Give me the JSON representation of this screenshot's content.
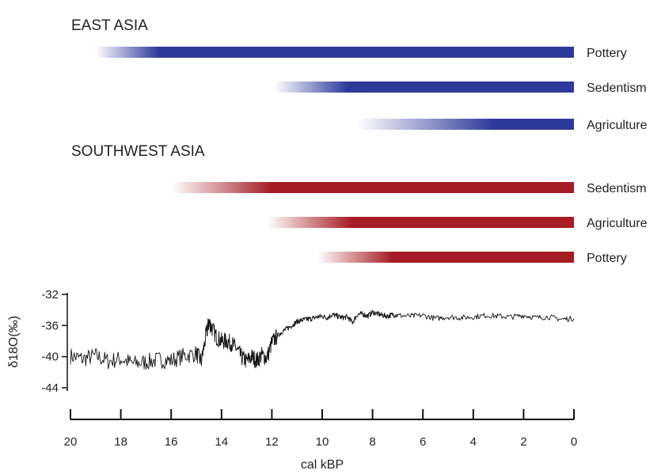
{
  "chart_data": [
    {
      "type": "timeline",
      "xlabel": "cal kBP",
      "xlim": [
        20,
        0
      ],
      "x_ticks": [
        "20",
        "18",
        "16",
        "14",
        "12",
        "10",
        "8",
        "6",
        "4",
        "2",
        "0"
      ],
      "groups": [
        {
          "title": "EAST ASIA",
          "color": "#2e3a9a",
          "bars": [
            {
              "label": "Pottery",
              "start": 19.0,
              "full": 16.5,
              "end": 0
            },
            {
              "label": "Sedentism",
              "start": 11.9,
              "full": 9.0,
              "end": 0
            },
            {
              "label": "Agriculture",
              "start": 8.6,
              "full": 3.2,
              "end": 0
            }
          ]
        },
        {
          "title": "SOUTHWEST ASIA",
          "color": "#a51c24",
          "bars": [
            {
              "label": "Sedentism",
              "start": 16.0,
              "full": 12.0,
              "end": 0
            },
            {
              "label": "Agriculture",
              "start": 12.2,
              "full": 8.8,
              "end": 0
            },
            {
              "label": "Pottery",
              "start": 10.2,
              "full": 7.2,
              "end": 0
            }
          ]
        }
      ]
    },
    {
      "type": "line",
      "ylabel": "δ18O(‰)",
      "ylim": [
        -44,
        -32
      ],
      "y_ticks": [
        "-32",
        "-36",
        "-40",
        "-44"
      ],
      "xlim": [
        20,
        0
      ],
      "xlabel": "cal kBP",
      "color": "#111111",
      "series": [
        {
          "x": [
            20.0,
            19.5,
            19.0,
            18.5,
            18.0,
            17.5,
            17.0,
            16.5,
            16.0,
            15.5,
            15.0,
            14.8,
            14.6,
            14.5,
            14.4,
            14.2,
            14.0,
            13.8,
            13.6,
            13.4,
            13.2,
            13.0,
            12.8,
            12.6,
            12.4,
            12.2,
            12.0,
            11.8,
            11.6,
            11.4,
            11.2,
            11.0,
            10.8,
            10.6,
            10.4,
            10.2,
            10.0,
            9.8,
            9.6,
            9.4,
            9.2,
            9.0,
            8.8,
            8.6,
            8.4,
            8.2,
            8.0,
            7.8,
            7.6,
            7.4,
            7.2,
            7.0,
            6.5,
            6.0,
            5.5,
            5.0,
            4.5,
            4.0,
            3.5,
            3.0,
            2.5,
            2.0,
            1.5,
            1.0,
            0.5,
            0.0
          ],
          "values": [
            -39.9,
            -40.3,
            -39.9,
            -40.6,
            -40.3,
            -40.9,
            -40.7,
            -40.4,
            -40.5,
            -39.9,
            -39.6,
            -40.6,
            -37.0,
            -35.6,
            -36.2,
            -37.5,
            -38.0,
            -38.0,
            -38.3,
            -39.0,
            -40.1,
            -40.6,
            -40.0,
            -40.5,
            -39.8,
            -40.2,
            -38.2,
            -37.4,
            -36.8,
            -36.4,
            -36.0,
            -35.5,
            -35.3,
            -35.2,
            -35.1,
            -34.9,
            -34.8,
            -35.0,
            -34.6,
            -34.8,
            -35.0,
            -34.9,
            -35.6,
            -34.6,
            -34.5,
            -34.8,
            -34.3,
            -34.5,
            -34.7,
            -34.8,
            -34.6,
            -34.7,
            -34.8,
            -34.7,
            -35.1,
            -34.9,
            -35.0,
            -34.9,
            -34.7,
            -34.8,
            -34.9,
            -34.7,
            -35.0,
            -34.9,
            -35.2,
            -35.1
          ]
        }
      ]
    }
  ]
}
